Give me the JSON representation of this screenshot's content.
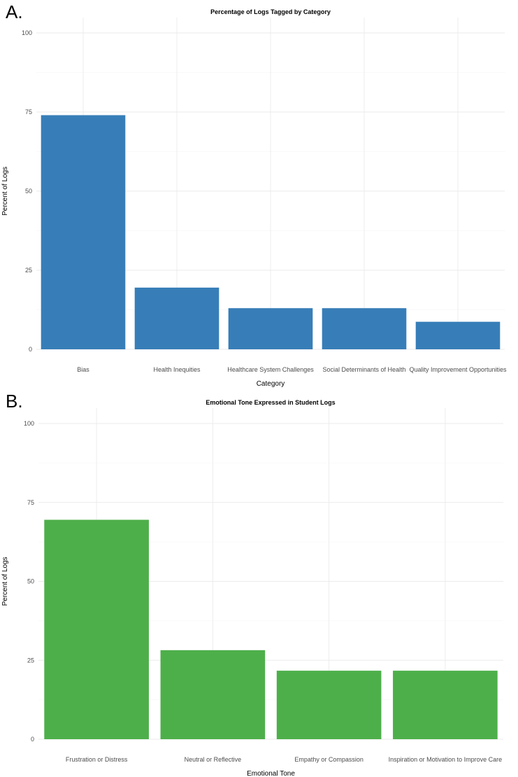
{
  "panels": [
    {
      "label": "A.",
      "chart_data": {
        "type": "bar",
        "title": "Percentage of Logs Tagged by Category",
        "xlabel": "Category",
        "ylabel": "Percent of Logs",
        "categories": [
          "Bias",
          "Health Inequities",
          "Healthcare System Challenges",
          "Social Determinants of Health",
          "Quality Improvement Opportunities"
        ],
        "values": [
          74,
          19.5,
          13,
          13,
          8.7
        ],
        "ylim": [
          0,
          100
        ],
        "yticks": [
          0,
          25,
          50,
          75,
          100
        ],
        "grid": true,
        "color": "#377eb8"
      }
    },
    {
      "label": "B.",
      "chart_data": {
        "type": "bar",
        "title": "Emotional Tone Expressed in Student Logs",
        "xlabel": "Emotional Tone",
        "ylabel": "Percent of Logs",
        "categories": [
          "Frustration or Distress",
          "Neutral or Reflective",
          "Empathy or Compassion",
          "Inspiration or Motivation to Improve Care"
        ],
        "values": [
          69.5,
          28.2,
          21.7,
          21.7
        ],
        "ylim": [
          0,
          100
        ],
        "yticks": [
          0,
          25,
          50,
          75,
          100
        ],
        "grid": true,
        "color": "#4daf4a"
      }
    }
  ]
}
